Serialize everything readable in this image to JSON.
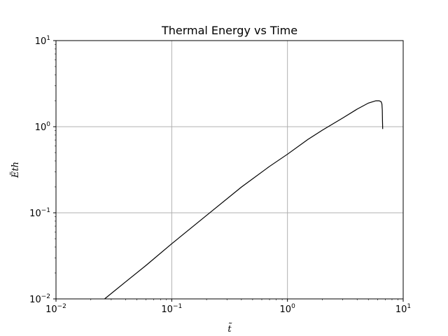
{
  "chart_data": {
    "type": "line",
    "title": "Thermal Energy vs Time",
    "xlabel": "t̃",
    "ylabel": "Ẽth",
    "xscale": "log",
    "yscale": "log",
    "xlim": [
      0.01,
      10
    ],
    "ylim": [
      0.01,
      10
    ],
    "grid": true,
    "x_ticks": [
      {
        "value": 0.01,
        "base": "10",
        "exp": "−2"
      },
      {
        "value": 0.1,
        "base": "10",
        "exp": "−1"
      },
      {
        "value": 1,
        "base": "10",
        "exp": "0"
      },
      {
        "value": 10,
        "base": "10",
        "exp": "1"
      }
    ],
    "y_ticks": [
      {
        "value": 0.01,
        "base": "10",
        "exp": "−2"
      },
      {
        "value": 0.1,
        "base": "10",
        "exp": "−1"
      },
      {
        "value": 1,
        "base": "10",
        "exp": "0"
      },
      {
        "value": 10,
        "base": "10",
        "exp": "1"
      }
    ],
    "series": [
      {
        "color": "#000000",
        "x": [
          0.0263,
          0.04,
          0.06,
          0.1,
          0.2,
          0.4,
          0.7,
          1.0,
          1.5,
          2.0,
          3.0,
          4.0,
          5.0,
          5.8,
          6.2,
          6.45,
          6.55,
          6.6,
          6.62,
          6.65
        ],
        "y": [
          0.01,
          0.0158,
          0.0245,
          0.0437,
          0.0933,
          0.199,
          0.346,
          0.479,
          0.71,
          0.91,
          1.26,
          1.6,
          1.88,
          2.0,
          2.0,
          1.95,
          1.83,
          1.55,
          1.2,
          0.94
        ]
      }
    ]
  }
}
